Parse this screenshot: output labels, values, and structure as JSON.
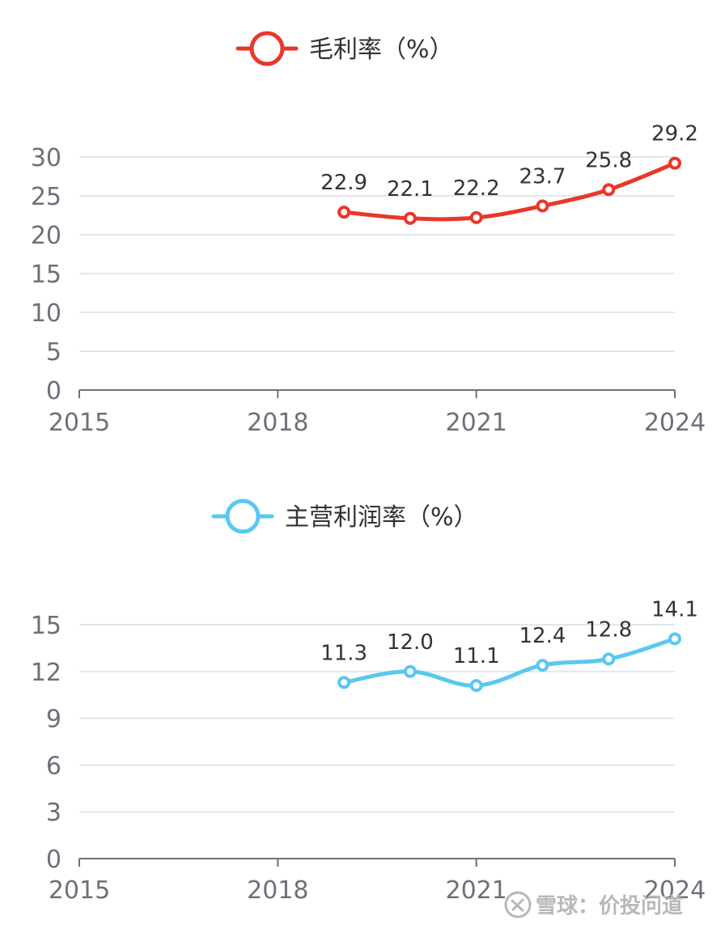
{
  "watermark": {
    "text": "雪球：价投问道"
  },
  "chart_data": [
    {
      "type": "line",
      "smooth": true,
      "legend_position": "top-center",
      "grid": "horizontal",
      "x_ticks": [
        "2015",
        "2018",
        "2021",
        "2024"
      ],
      "x_range": [
        2015,
        2024
      ],
      "y_ticks": [
        "0",
        "5",
        "10",
        "15",
        "20",
        "25",
        "30"
      ],
      "ylim": [
        0,
        30
      ],
      "series": [
        {
          "name": "毛利率（%）",
          "color": "#e8382a",
          "x": [
            2019,
            2020,
            2021,
            2022,
            2023,
            2024
          ],
          "values": [
            22.9,
            22.1,
            22.2,
            23.7,
            25.8,
            29.2
          ],
          "labels": [
            "22.9",
            "22.1",
            "22.2",
            "23.7",
            "25.8",
            "29.2"
          ]
        }
      ]
    },
    {
      "type": "line",
      "smooth": true,
      "legend_position": "top-center",
      "grid": "horizontal",
      "x_ticks": [
        "2015",
        "2018",
        "2021",
        "2024"
      ],
      "x_range": [
        2015,
        2024
      ],
      "y_ticks": [
        "0",
        "3",
        "6",
        "9",
        "12",
        "15"
      ],
      "ylim": [
        0,
        15
      ],
      "series": [
        {
          "name": "主营利润率（%）",
          "color": "#5ac8f0",
          "x": [
            2019,
            2020,
            2021,
            2022,
            2023,
            2024
          ],
          "values": [
            11.3,
            12.0,
            11.1,
            12.4,
            12.8,
            14.1
          ],
          "labels": [
            "11.3",
            "12.0",
            "11.1",
            "12.4",
            "12.8",
            "14.1"
          ]
        }
      ]
    }
  ]
}
